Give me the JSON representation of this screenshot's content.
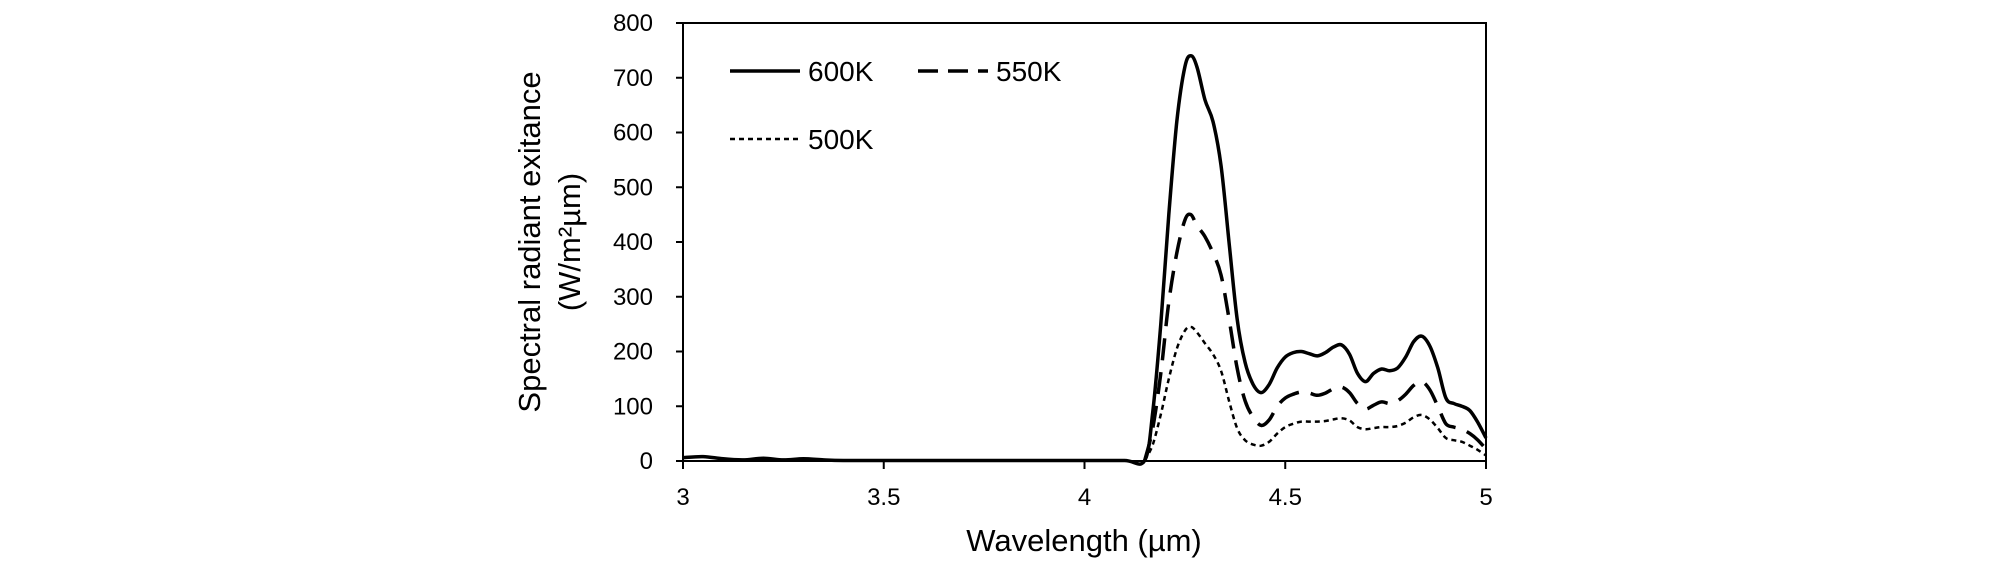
{
  "chart_data": {
    "type": "line",
    "xlabel": "Wavelength (µm)",
    "ylabel_line1": "Spectral radiant exitance",
    "ylabel_line2": "(W/m²µm)",
    "xlim": [
      3,
      5
    ],
    "ylim": [
      0,
      800
    ],
    "xticks": [
      {
        "value": 3,
        "label": "3"
      },
      {
        "value": 3.5,
        "label": "3.5"
      },
      {
        "value": 4,
        "label": "4"
      },
      {
        "value": 4.5,
        "label": "4.5"
      },
      {
        "value": 5,
        "label": "5"
      }
    ],
    "yticks": [
      {
        "value": 0,
        "label": "0"
      },
      {
        "value": 100,
        "label": "100"
      },
      {
        "value": 200,
        "label": "200"
      },
      {
        "value": 300,
        "label": "300"
      },
      {
        "value": 400,
        "label": "400"
      },
      {
        "value": 500,
        "label": "500"
      },
      {
        "value": 600,
        "label": "600"
      },
      {
        "value": 700,
        "label": "700"
      },
      {
        "value": 800,
        "label": "800"
      }
    ],
    "grid": false,
    "legend_position": "top-left",
    "series": [
      {
        "name": "600K",
        "style": "solid",
        "color": "#000000",
        "points": [
          [
            3,
            6
          ],
          [
            3.05,
            8
          ],
          [
            3.1,
            4
          ],
          [
            3.15,
            2
          ],
          [
            3.2,
            5
          ],
          [
            3.25,
            2
          ],
          [
            3.3,
            4
          ],
          [
            3.35,
            2
          ],
          [
            3.4,
            1
          ],
          [
            3.5,
            1
          ],
          [
            3.6,
            1
          ],
          [
            3.7,
            1
          ],
          [
            3.8,
            1
          ],
          [
            3.9,
            1
          ],
          [
            4.0,
            1
          ],
          [
            4.1,
            1
          ],
          [
            4.15,
            1
          ],
          [
            4.17,
            90
          ],
          [
            4.19,
            250
          ],
          [
            4.21,
            450
          ],
          [
            4.23,
            620
          ],
          [
            4.25,
            720
          ],
          [
            4.265,
            740
          ],
          [
            4.28,
            720
          ],
          [
            4.3,
            660
          ],
          [
            4.32,
            620
          ],
          [
            4.34,
            540
          ],
          [
            4.36,
            400
          ],
          [
            4.38,
            260
          ],
          [
            4.4,
            180
          ],
          [
            4.42,
            140
          ],
          [
            4.44,
            125
          ],
          [
            4.46,
            140
          ],
          [
            4.48,
            170
          ],
          [
            4.5,
            190
          ],
          [
            4.52,
            198
          ],
          [
            4.54,
            200
          ],
          [
            4.56,
            196
          ],
          [
            4.58,
            192
          ],
          [
            4.6,
            198
          ],
          [
            4.62,
            208
          ],
          [
            4.64,
            212
          ],
          [
            4.66,
            195
          ],
          [
            4.68,
            160
          ],
          [
            4.7,
            145
          ],
          [
            4.72,
            160
          ],
          [
            4.74,
            168
          ],
          [
            4.76,
            165
          ],
          [
            4.78,
            170
          ],
          [
            4.8,
            190
          ],
          [
            4.82,
            218
          ],
          [
            4.84,
            228
          ],
          [
            4.86,
            210
          ],
          [
            4.88,
            170
          ],
          [
            4.9,
            115
          ],
          [
            4.92,
            105
          ],
          [
            4.94,
            100
          ],
          [
            4.96,
            92
          ],
          [
            4.98,
            70
          ],
          [
            5.0,
            42
          ]
        ]
      },
      {
        "name": "550K",
        "style": "dashed",
        "color": "#000000",
        "points": [
          [
            4.15,
            1
          ],
          [
            4.17,
            60
          ],
          [
            4.19,
            160
          ],
          [
            4.21,
            290
          ],
          [
            4.23,
            380
          ],
          [
            4.25,
            440
          ],
          [
            4.265,
            450
          ],
          [
            4.28,
            430
          ],
          [
            4.3,
            410
          ],
          [
            4.32,
            380
          ],
          [
            4.34,
            340
          ],
          [
            4.36,
            260
          ],
          [
            4.38,
            170
          ],
          [
            4.4,
            110
          ],
          [
            4.42,
            80
          ],
          [
            4.44,
            65
          ],
          [
            4.46,
            75
          ],
          [
            4.48,
            100
          ],
          [
            4.5,
            115
          ],
          [
            4.52,
            122
          ],
          [
            4.54,
            126
          ],
          [
            4.56,
            124
          ],
          [
            4.58,
            120
          ],
          [
            4.6,
            124
          ],
          [
            4.62,
            132
          ],
          [
            4.64,
            135
          ],
          [
            4.66,
            125
          ],
          [
            4.68,
            105
          ],
          [
            4.7,
            95
          ],
          [
            4.72,
            102
          ],
          [
            4.74,
            108
          ],
          [
            4.76,
            105
          ],
          [
            4.78,
            110
          ],
          [
            4.8,
            122
          ],
          [
            4.82,
            138
          ],
          [
            4.84,
            145
          ],
          [
            4.86,
            130
          ],
          [
            4.88,
            100
          ],
          [
            4.9,
            68
          ],
          [
            4.92,
            62
          ],
          [
            4.94,
            58
          ],
          [
            4.96,
            50
          ],
          [
            4.98,
            38
          ],
          [
            5.0,
            22
          ]
        ]
      },
      {
        "name": "500K",
        "style": "dotted",
        "color": "#000000",
        "points": [
          [
            4.15,
            1
          ],
          [
            4.17,
            30
          ],
          [
            4.19,
            85
          ],
          [
            4.21,
            150
          ],
          [
            4.23,
            205
          ],
          [
            4.25,
            238
          ],
          [
            4.265,
            245
          ],
          [
            4.28,
            235
          ],
          [
            4.3,
            215
          ],
          [
            4.32,
            195
          ],
          [
            4.34,
            165
          ],
          [
            4.36,
            110
          ],
          [
            4.38,
            60
          ],
          [
            4.4,
            38
          ],
          [
            4.42,
            30
          ],
          [
            4.44,
            28
          ],
          [
            4.46,
            35
          ],
          [
            4.48,
            50
          ],
          [
            4.5,
            62
          ],
          [
            4.52,
            68
          ],
          [
            4.54,
            72
          ],
          [
            4.56,
            72
          ],
          [
            4.58,
            72
          ],
          [
            4.6,
            73
          ],
          [
            4.62,
            76
          ],
          [
            4.64,
            78
          ],
          [
            4.66,
            74
          ],
          [
            4.68,
            62
          ],
          [
            4.7,
            58
          ],
          [
            4.72,
            60
          ],
          [
            4.74,
            62
          ],
          [
            4.76,
            62
          ],
          [
            4.78,
            64
          ],
          [
            4.8,
            70
          ],
          [
            4.82,
            80
          ],
          [
            4.84,
            84
          ],
          [
            4.86,
            76
          ],
          [
            4.88,
            60
          ],
          [
            4.9,
            42
          ],
          [
            4.92,
            38
          ],
          [
            4.94,
            35
          ],
          [
            4.96,
            28
          ],
          [
            4.98,
            20
          ],
          [
            5.0,
            10
          ]
        ]
      }
    ]
  }
}
